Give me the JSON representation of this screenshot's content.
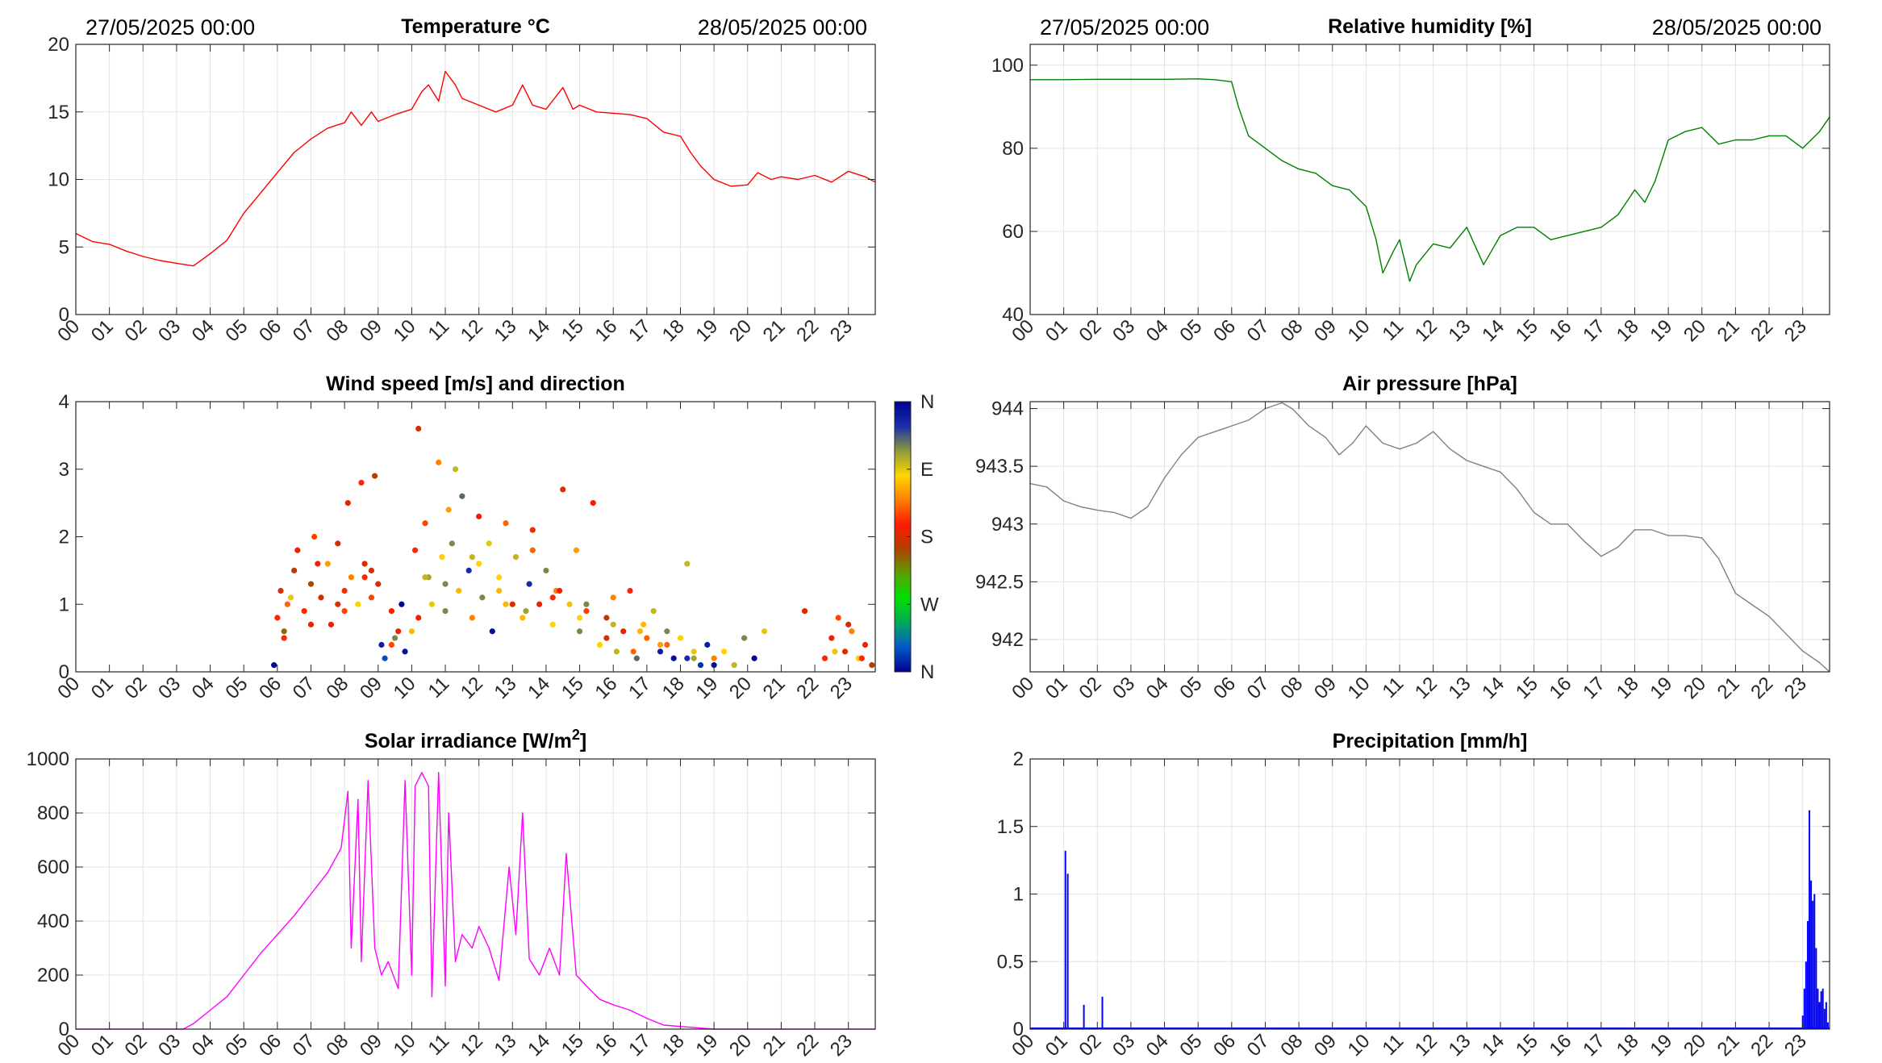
{
  "chart_data": [
    {
      "id": "temperature",
      "type": "line",
      "title": "Temperature °C",
      "date_start": "27/05/2025 00:00",
      "date_end": "28/05/2025 00:00",
      "x_ticks": [
        "00",
        "01",
        "02",
        "03",
        "04",
        "05",
        "06",
        "07",
        "08",
        "09",
        "10",
        "11",
        "12",
        "13",
        "14",
        "15",
        "16",
        "17",
        "18",
        "19",
        "20",
        "21",
        "22",
        "23"
      ],
      "xlim": [
        0,
        23.8
      ],
      "ylim": [
        0,
        20
      ],
      "y_ticks": [
        "0",
        "5",
        "10",
        "15",
        "20"
      ],
      "grid": true,
      "color": "#ff0000",
      "x": [
        0,
        0.5,
        1,
        1.5,
        2,
        2.5,
        3,
        3.5,
        4,
        4.5,
        5,
        5.5,
        6,
        6.5,
        7,
        7.5,
        8,
        8.2,
        8.5,
        8.8,
        9,
        9.5,
        10,
        10.3,
        10.5,
        10.8,
        11,
        11.3,
        11.5,
        12,
        12.5,
        13,
        13.3,
        13.6,
        14,
        14.5,
        14.8,
        15,
        15.5,
        16,
        16.5,
        17,
        17.5,
        18,
        18.3,
        18.6,
        19,
        19.5,
        20,
        20.3,
        20.7,
        21,
        21.5,
        22,
        22.5,
        23,
        23.5,
        23.8
      ],
      "values": [
        6,
        5.4,
        5.2,
        4.7,
        4.3,
        4.0,
        3.8,
        3.6,
        4.5,
        5.5,
        7.5,
        9,
        10.5,
        12,
        13,
        13.8,
        14.2,
        15,
        14,
        15,
        14.3,
        14.8,
        15.2,
        16.5,
        17,
        15.8,
        18,
        17,
        16,
        15.5,
        15,
        15.5,
        17,
        15.5,
        15.2,
        16.8,
        15.2,
        15.5,
        15,
        14.9,
        14.8,
        14.5,
        13.5,
        13.2,
        12,
        11,
        10,
        9.5,
        9.6,
        10.5,
        10,
        10.2,
        10,
        10.3,
        9.8,
        10.6,
        10.2,
        9.8
      ]
    },
    {
      "id": "humidity",
      "type": "line",
      "title": "Relative humidity [%]",
      "date_start": "27/05/2025 00:00",
      "date_end": "28/05/2025 00:00",
      "x_ticks": [
        "00",
        "01",
        "02",
        "03",
        "04",
        "05",
        "06",
        "07",
        "08",
        "09",
        "10",
        "11",
        "12",
        "13",
        "14",
        "15",
        "16",
        "17",
        "18",
        "19",
        "20",
        "21",
        "22",
        "23"
      ],
      "xlim": [
        0,
        23.8
      ],
      "ylim": [
        40,
        105
      ],
      "y_ticks": [
        "40",
        "60",
        "80",
        "100"
      ],
      "grid": true,
      "color": "#008000",
      "x": [
        0,
        1,
        2,
        3,
        4,
        5,
        5.5,
        6,
        6.2,
        6.5,
        7,
        7.5,
        8,
        8.5,
        9,
        9.5,
        10,
        10.3,
        10.5,
        10.8,
        11,
        11.3,
        11.5,
        12,
        12.5,
        13,
        13.5,
        14,
        14.5,
        15,
        15.5,
        16,
        16.5,
        17,
        17.5,
        18,
        18.3,
        18.6,
        19,
        19.5,
        20,
        20.5,
        21,
        21.5,
        22,
        22.5,
        23,
        23.5,
        23.8
      ],
      "values": [
        96.5,
        96.5,
        96.6,
        96.6,
        96.6,
        96.7,
        96.5,
        96,
        90,
        83,
        80,
        77,
        75,
        74,
        71,
        70,
        66,
        58,
        50,
        55,
        58,
        48,
        52,
        57,
        56,
        61,
        52,
        59,
        61,
        61,
        58,
        59,
        60,
        61,
        64,
        70,
        67,
        72,
        82,
        84,
        85,
        81,
        82,
        82,
        83,
        83,
        80,
        84,
        87.5
      ]
    },
    {
      "id": "wind",
      "type": "scatter",
      "title": "Wind speed [m/s] and direction",
      "x_ticks": [
        "00",
        "01",
        "02",
        "03",
        "04",
        "05",
        "06",
        "07",
        "08",
        "09",
        "10",
        "11",
        "12",
        "13",
        "14",
        "15",
        "16",
        "17",
        "18",
        "19",
        "20",
        "21",
        "22",
        "23"
      ],
      "xlim": [
        0,
        23.8
      ],
      "ylim": [
        0,
        4
      ],
      "y_ticks": [
        "0",
        "1",
        "2",
        "3",
        "4"
      ],
      "grid": false,
      "colorbar_labels": [
        "N",
        "W",
        "S",
        "E",
        "N"
      ],
      "colorbar_colors": [
        "#00008f",
        "#0059c8",
        "#00a85a",
        "#00e000",
        "#5aa000",
        "#b04000",
        "#ff1a00",
        "#ff7f00",
        "#ffd700",
        "#8f9a3a",
        "#1a2eaa",
        "#00008f"
      ],
      "x": [
        5.9,
        6.0,
        6.1,
        6.2,
        6.3,
        6.5,
        6.6,
        6.8,
        7.0,
        7.1,
        7.3,
        7.5,
        7.6,
        7.8,
        8.0,
        8.1,
        8.2,
        8.4,
        8.5,
        8.6,
        8.8,
        8.9,
        9.0,
        9.1,
        9.2,
        9.4,
        9.5,
        9.7,
        9.8,
        10.0,
        10.1,
        10.2,
        10.4,
        10.5,
        10.6,
        10.8,
        10.9,
        11.0,
        11.1,
        11.3,
        11.4,
        11.5,
        11.7,
        11.8,
        12.0,
        12.1,
        12.3,
        12.4,
        12.6,
        12.8,
        13.0,
        13.1,
        13.3,
        13.5,
        13.6,
        13.8,
        14.0,
        14.2,
        14.3,
        14.5,
        14.7,
        14.9,
        15.0,
        15.2,
        15.4,
        15.6,
        15.8,
        16.0,
        16.1,
        16.3,
        16.5,
        16.7,
        16.9,
        17.0,
        17.2,
        17.4,
        17.6,
        17.8,
        18.0,
        18.2,
        18.4,
        18.6,
        18.8,
        19.0,
        19.3,
        19.6,
        19.9,
        20.2,
        20.5,
        21.7,
        22.3,
        22.5,
        22.7,
        22.9,
        23.1,
        23.3,
        23.5,
        23.7,
        6.2,
        7.0,
        7.8,
        8.6,
        9.4,
        10.2,
        11.0,
        11.8,
        12.6,
        13.4,
        14.2,
        15.0,
        15.8,
        16.6,
        17.4,
        18.2,
        19.0,
        6.4,
        7.2,
        8.0,
        8.8,
        9.6,
        10.4,
        11.2,
        12.0,
        12.8,
        13.6,
        14.4,
        15.2,
        16.0,
        16.8,
        17.6,
        18.4,
        22.6,
        23.0,
        23.4
      ],
      "values": [
        0.1,
        0.8,
        1.2,
        0.6,
        1.0,
        1.5,
        1.8,
        0.9,
        1.3,
        2.0,
        1.1,
        1.6,
        0.7,
        1.9,
        1.2,
        2.5,
        1.4,
        1.0,
        2.8,
        1.6,
        1.1,
        2.9,
        1.3,
        0.4,
        0.2,
        0.9,
        0.5,
        1.0,
        0.3,
        0.6,
        1.8,
        3.6,
        2.2,
        1.4,
        1.0,
        3.1,
        1.7,
        0.9,
        2.4,
        3.0,
        1.2,
        2.6,
        1.5,
        0.8,
        2.3,
        1.1,
        1.9,
        0.6,
        1.4,
        2.2,
        1.0,
        1.7,
        0.8,
        1.3,
        2.1,
        1.0,
        1.5,
        0.7,
        1.2,
        2.7,
        1.0,
        1.8,
        0.6,
        0.9,
        2.5,
        0.4,
        0.8,
        1.1,
        0.3,
        0.6,
        1.2,
        0.2,
        0.7,
        0.5,
        0.9,
        0.3,
        0.6,
        0.2,
        0.5,
        1.6,
        0.3,
        0.1,
        0.4,
        0.2,
        0.3,
        0.1,
        0.5,
        0.2,
        0.6,
        0.9,
        0.2,
        0.5,
        0.8,
        0.3,
        0.6,
        0.2,
        0.4,
        0.1,
        0.5,
        0.7,
        1.0,
        1.4,
        0.4,
        0.8,
        1.3,
        1.7,
        1.2,
        0.9,
        1.1,
        0.8,
        0.5,
        0.3,
        0.4,
        0.2,
        0.1,
        1.1,
        1.6,
        0.9,
        1.5,
        0.6,
        1.4,
        1.9,
        1.6,
        1.0,
        1.8,
        1.2,
        1.0,
        0.7,
        0.6,
        0.4,
        0.2,
        0.3,
        0.7,
        0.2
      ],
      "directions": [
        360,
        200,
        180,
        150,
        220,
        170,
        190,
        200,
        160,
        210,
        180,
        240,
        190,
        175,
        200,
        185,
        230,
        260,
        200,
        190,
        210,
        170,
        180,
        340,
        30,
        190,
        300,
        360,
        350,
        250,
        200,
        180,
        210,
        290,
        270,
        230,
        260,
        300,
        240,
        280,
        250,
        310,
        330,
        230,
        190,
        300,
        270,
        350,
        260,
        220,
        180,
        280,
        250,
        330,
        200,
        190,
        300,
        260,
        230,
        180,
        270,
        240,
        300,
        210,
        190,
        260,
        170,
        230,
        280,
        190,
        200,
        310,
        250,
        220,
        280,
        340,
        300,
        350,
        260,
        280,
        270,
        20,
        340,
        230,
        260,
        280,
        300,
        360,
        270,
        180,
        200,
        190,
        210,
        180,
        230,
        260,
        190,
        170,
        200,
        190,
        180,
        200,
        210,
        190,
        300,
        280,
        250,
        290,
        200,
        260,
        180,
        220,
        240,
        330,
        350,
        270,
        190,
        210,
        180,
        190,
        280,
        300,
        260,
        250,
        220,
        190,
        300,
        280,
        250,
        220,
        290,
        270,
        180,
        200,
        190
      ]
    },
    {
      "id": "pressure",
      "type": "line",
      "title": "Air pressure [hPa]",
      "x_ticks": [
        "00",
        "01",
        "02",
        "03",
        "04",
        "05",
        "06",
        "07",
        "08",
        "09",
        "10",
        "11",
        "12",
        "13",
        "14",
        "15",
        "16",
        "17",
        "18",
        "19",
        "20",
        "21",
        "22",
        "23"
      ],
      "xlim": [
        0,
        23.8
      ],
      "ylim": [
        941.72,
        944.06
      ],
      "y_ticks": [
        "942",
        "942.5",
        "943",
        "943.5",
        "944"
      ],
      "grid": true,
      "color": "#808080",
      "x": [
        0,
        0.5,
        1,
        1.5,
        2,
        2.5,
        3,
        3.5,
        4,
        4.5,
        5,
        5.5,
        6,
        6.5,
        7,
        7.5,
        7.8,
        8.3,
        8.8,
        9.2,
        9.6,
        10,
        10.5,
        11,
        11.5,
        12,
        12.5,
        13,
        13.5,
        14,
        14.5,
        15,
        15.5,
        16,
        16.5,
        17,
        17.5,
        18,
        18.5,
        19,
        19.5,
        20,
        20.5,
        21,
        21.5,
        22,
        22.5,
        23,
        23.5,
        23.8
      ],
      "values": [
        943.35,
        943.32,
        943.2,
        943.15,
        943.12,
        943.1,
        943.05,
        943.15,
        943.4,
        943.6,
        943.75,
        943.8,
        943.85,
        943.9,
        944.0,
        944.05,
        944.0,
        943.85,
        943.75,
        943.6,
        943.7,
        943.85,
        943.7,
        943.65,
        943.7,
        943.8,
        943.65,
        943.55,
        943.5,
        943.45,
        943.3,
        943.1,
        943.0,
        943.0,
        942.85,
        942.72,
        942.8,
        942.95,
        942.95,
        942.9,
        942.9,
        942.88,
        942.7,
        942.4,
        942.3,
        942.2,
        942.05,
        941.9,
        941.8,
        941.72
      ]
    },
    {
      "id": "solar",
      "type": "line",
      "title": "Solar irradiance [W/m²]",
      "title_main": "Solar irradiance [W/m",
      "title_sup": "2",
      "title_end": "]",
      "x_ticks": [
        "00",
        "01",
        "02",
        "03",
        "04",
        "05",
        "06",
        "07",
        "08",
        "09",
        "10",
        "11",
        "12",
        "13",
        "14",
        "15",
        "16",
        "17",
        "18",
        "19",
        "20",
        "21",
        "22",
        "23"
      ],
      "xlim": [
        0,
        23.8
      ],
      "ylim": [
        0,
        1000
      ],
      "y_ticks": [
        "0",
        "200",
        "400",
        "600",
        "800",
        "1000"
      ],
      "grid": true,
      "color": "#ff00ff",
      "x": [
        0,
        3.2,
        3.5,
        4,
        4.5,
        5,
        5.5,
        6,
        6.5,
        7,
        7.5,
        7.9,
        8.1,
        8.2,
        8.4,
        8.5,
        8.7,
        8.9,
        9.1,
        9.3,
        9.6,
        9.8,
        10,
        10.1,
        10.3,
        10.5,
        10.6,
        10.8,
        11,
        11.1,
        11.3,
        11.5,
        11.8,
        12,
        12.3,
        12.6,
        12.9,
        13.1,
        13.3,
        13.5,
        13.8,
        14.1,
        14.4,
        14.6,
        14.9,
        15.2,
        15.6,
        16,
        16.5,
        17,
        17.5,
        18,
        18.5,
        19,
        19.5,
        20,
        21,
        22,
        23,
        23.8
      ],
      "values": [
        0,
        0,
        20,
        70,
        120,
        200,
        280,
        350,
        420,
        500,
        580,
        670,
        880,
        300,
        850,
        250,
        920,
        300,
        200,
        250,
        150,
        920,
        200,
        900,
        950,
        900,
        120,
        950,
        160,
        800,
        250,
        350,
        300,
        380,
        300,
        180,
        600,
        350,
        800,
        260,
        200,
        300,
        200,
        650,
        200,
        160,
        110,
        90,
        70,
        40,
        15,
        10,
        5,
        0,
        0,
        0,
        0,
        0,
        0,
        0
      ]
    },
    {
      "id": "precipitation",
      "type": "bar",
      "title": "Precipitation [mm/h]",
      "x_ticks": [
        "00",
        "01",
        "02",
        "03",
        "04",
        "05",
        "06",
        "07",
        "08",
        "09",
        "10",
        "11",
        "12",
        "13",
        "14",
        "15",
        "16",
        "17",
        "18",
        "19",
        "20",
        "21",
        "22",
        "23"
      ],
      "xlim": [
        0,
        23.8
      ],
      "ylim": [
        0,
        2
      ],
      "y_ticks": [
        "0",
        "0.5",
        "1",
        "1.5",
        "2"
      ],
      "grid": true,
      "color": "#0000ff",
      "x": [
        1.05,
        1.12,
        1.6,
        2.15,
        23.0,
        23.05,
        23.1,
        23.15,
        23.2,
        23.25,
        23.3,
        23.35,
        23.4,
        23.45,
        23.5,
        23.55,
        23.6,
        23.65,
        23.7,
        23.75
      ],
      "values": [
        1.32,
        1.15,
        0.18,
        0.24,
        0.1,
        0.3,
        0.5,
        0.8,
        1.62,
        1.1,
        0.95,
        1.0,
        0.6,
        0.3,
        0.2,
        0.28,
        0.3,
        0.15,
        0.2,
        0.05
      ]
    }
  ]
}
